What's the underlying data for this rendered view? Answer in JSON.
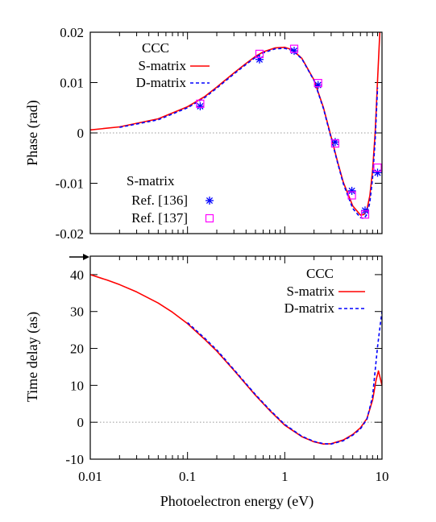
{
  "chart_data": [
    {
      "type": "line",
      "xscale": "log",
      "xlim": [
        0.01,
        10
      ],
      "ylim": [
        -0.02,
        0.02
      ],
      "ylabel": "Phase (rad)",
      "yticks": [
        -0.02,
        -0.01,
        0,
        0.01,
        0.02
      ],
      "ytick_labels": [
        "-0.02",
        "-0.01",
        "0",
        "0.01",
        "0.02"
      ],
      "zero_line": true,
      "legend_title": "CCC",
      "legend_placement": "top-left",
      "series": [
        {
          "name": "S-matrix",
          "style": "solid",
          "color": "#ff0000",
          "x": [
            0.01,
            0.02,
            0.05,
            0.1,
            0.15,
            0.2,
            0.3,
            0.4,
            0.5,
            0.6,
            0.8,
            1.0,
            1.2,
            1.5,
            2.0,
            2.5,
            3.0,
            3.5,
            4.0,
            5.0,
            6.0,
            6.5,
            7.0,
            7.5,
            8.0,
            8.5,
            9.0,
            9.5
          ],
          "y": [
            0.0006,
            0.0012,
            0.0028,
            0.0052,
            0.0072,
            0.0091,
            0.0119,
            0.0138,
            0.0152,
            0.0161,
            0.0169,
            0.017,
            0.0165,
            0.0148,
            0.0105,
            0.005,
            -0.0008,
            -0.0058,
            -0.0098,
            -0.0145,
            -0.0163,
            -0.0162,
            -0.0152,
            -0.0125,
            -0.0075,
            0.0,
            0.0105,
            0.02
          ]
        },
        {
          "name": "D-matrix",
          "style": "dashed",
          "color": "#0000ff",
          "x": [
            0.02,
            0.05,
            0.1,
            0.15,
            0.2,
            0.3,
            0.4,
            0.5,
            0.6,
            0.8,
            1.0,
            1.2,
            1.5,
            2.0,
            2.5,
            3.0,
            3.5,
            4.0,
            5.0,
            6.0,
            6.5,
            7.0,
            7.5,
            8.0,
            8.5,
            9.0
          ],
          "y": [
            0.0011,
            0.0026,
            0.005,
            0.007,
            0.0089,
            0.0117,
            0.0136,
            0.015,
            0.0159,
            0.0167,
            0.0168,
            0.0164,
            0.0147,
            0.0104,
            0.0048,
            -0.001,
            -0.006,
            -0.0101,
            -0.015,
            -0.0168,
            -0.017,
            -0.0162,
            -0.0138,
            -0.009,
            -0.0015,
            0.009
          ]
        }
      ],
      "markers_title": "S-matrix",
      "markers": [
        {
          "name": "Ref. [136]",
          "symbol": "asterisk",
          "color": "#0000ff",
          "x": [
            0.135,
            0.55,
            1.25,
            2.2,
            3.3,
            4.9,
            6.7,
            9.0
          ],
          "y": [
            0.0053,
            0.0146,
            0.0163,
            0.0095,
            -0.0018,
            -0.0115,
            -0.0154,
            -0.0079
          ]
        },
        {
          "name": "Ref. [137]",
          "symbol": "square",
          "color": "#ff00ff",
          "x": [
            0.135,
            0.55,
            1.25,
            2.2,
            3.3,
            4.9,
            6.7,
            9.0
          ],
          "y": [
            0.0058,
            0.0157,
            0.0167,
            0.0099,
            -0.0021,
            -0.0124,
            -0.0162,
            -0.0069
          ]
        }
      ]
    },
    {
      "type": "line",
      "xscale": "log",
      "xlim": [
        0.01,
        10
      ],
      "ylim": [
        -10,
        45
      ],
      "xlabel": "Photoelectron energy (eV)",
      "ylabel": "Time delay (as)",
      "xticks": [
        0.01,
        0.1,
        1,
        10
      ],
      "xtick_labels": [
        "0.01",
        "0.1",
        "1",
        "10"
      ],
      "yticks": [
        -10,
        0,
        10,
        20,
        30,
        40
      ],
      "ytick_labels": [
        "-10",
        "0",
        "10",
        "20",
        "30",
        "40"
      ],
      "zero_line": true,
      "legend_title": "CCC",
      "legend_placement": "top-right",
      "series": [
        {
          "name": "S-matrix",
          "style": "solid",
          "color": "#ff0000",
          "x": [
            0.01,
            0.015,
            0.02,
            0.03,
            0.05,
            0.07,
            0.1,
            0.15,
            0.2,
            0.3,
            0.5,
            0.7,
            1.0,
            1.5,
            2.0,
            2.5,
            3.0,
            4.0,
            5.0,
            6.0,
            7.0,
            8.0,
            8.7,
            9.2,
            10.0
          ],
          "y": [
            40,
            38.5,
            37.3,
            35.3,
            32.3,
            29.8,
            26.7,
            22.5,
            19.3,
            14.1,
            7.3,
            3.2,
            -0.8,
            -3.9,
            -5.3,
            -5.9,
            -5.8,
            -4.8,
            -3.3,
            -1.5,
            1.0,
            6.0,
            11.5,
            13.9,
            10.0
          ]
        },
        {
          "name": "D-matrix",
          "style": "dashed",
          "color": "#0000ff",
          "x": [
            0.1,
            0.15,
            0.2,
            0.3,
            0.5,
            0.7,
            1.0,
            1.5,
            2.0,
            2.5,
            3.0,
            4.0,
            5.0,
            6.0,
            7.0,
            8.0,
            8.5,
            9.0,
            9.5,
            10.0
          ],
          "y": [
            27.0,
            22.8,
            19.6,
            14.3,
            7.5,
            3.4,
            -0.6,
            -3.8,
            -5.2,
            -5.8,
            -5.9,
            -5.0,
            -3.5,
            -1.8,
            0.8,
            7.0,
            14.0,
            20.5,
            25.5,
            30.0
          ]
        }
      ]
    }
  ]
}
